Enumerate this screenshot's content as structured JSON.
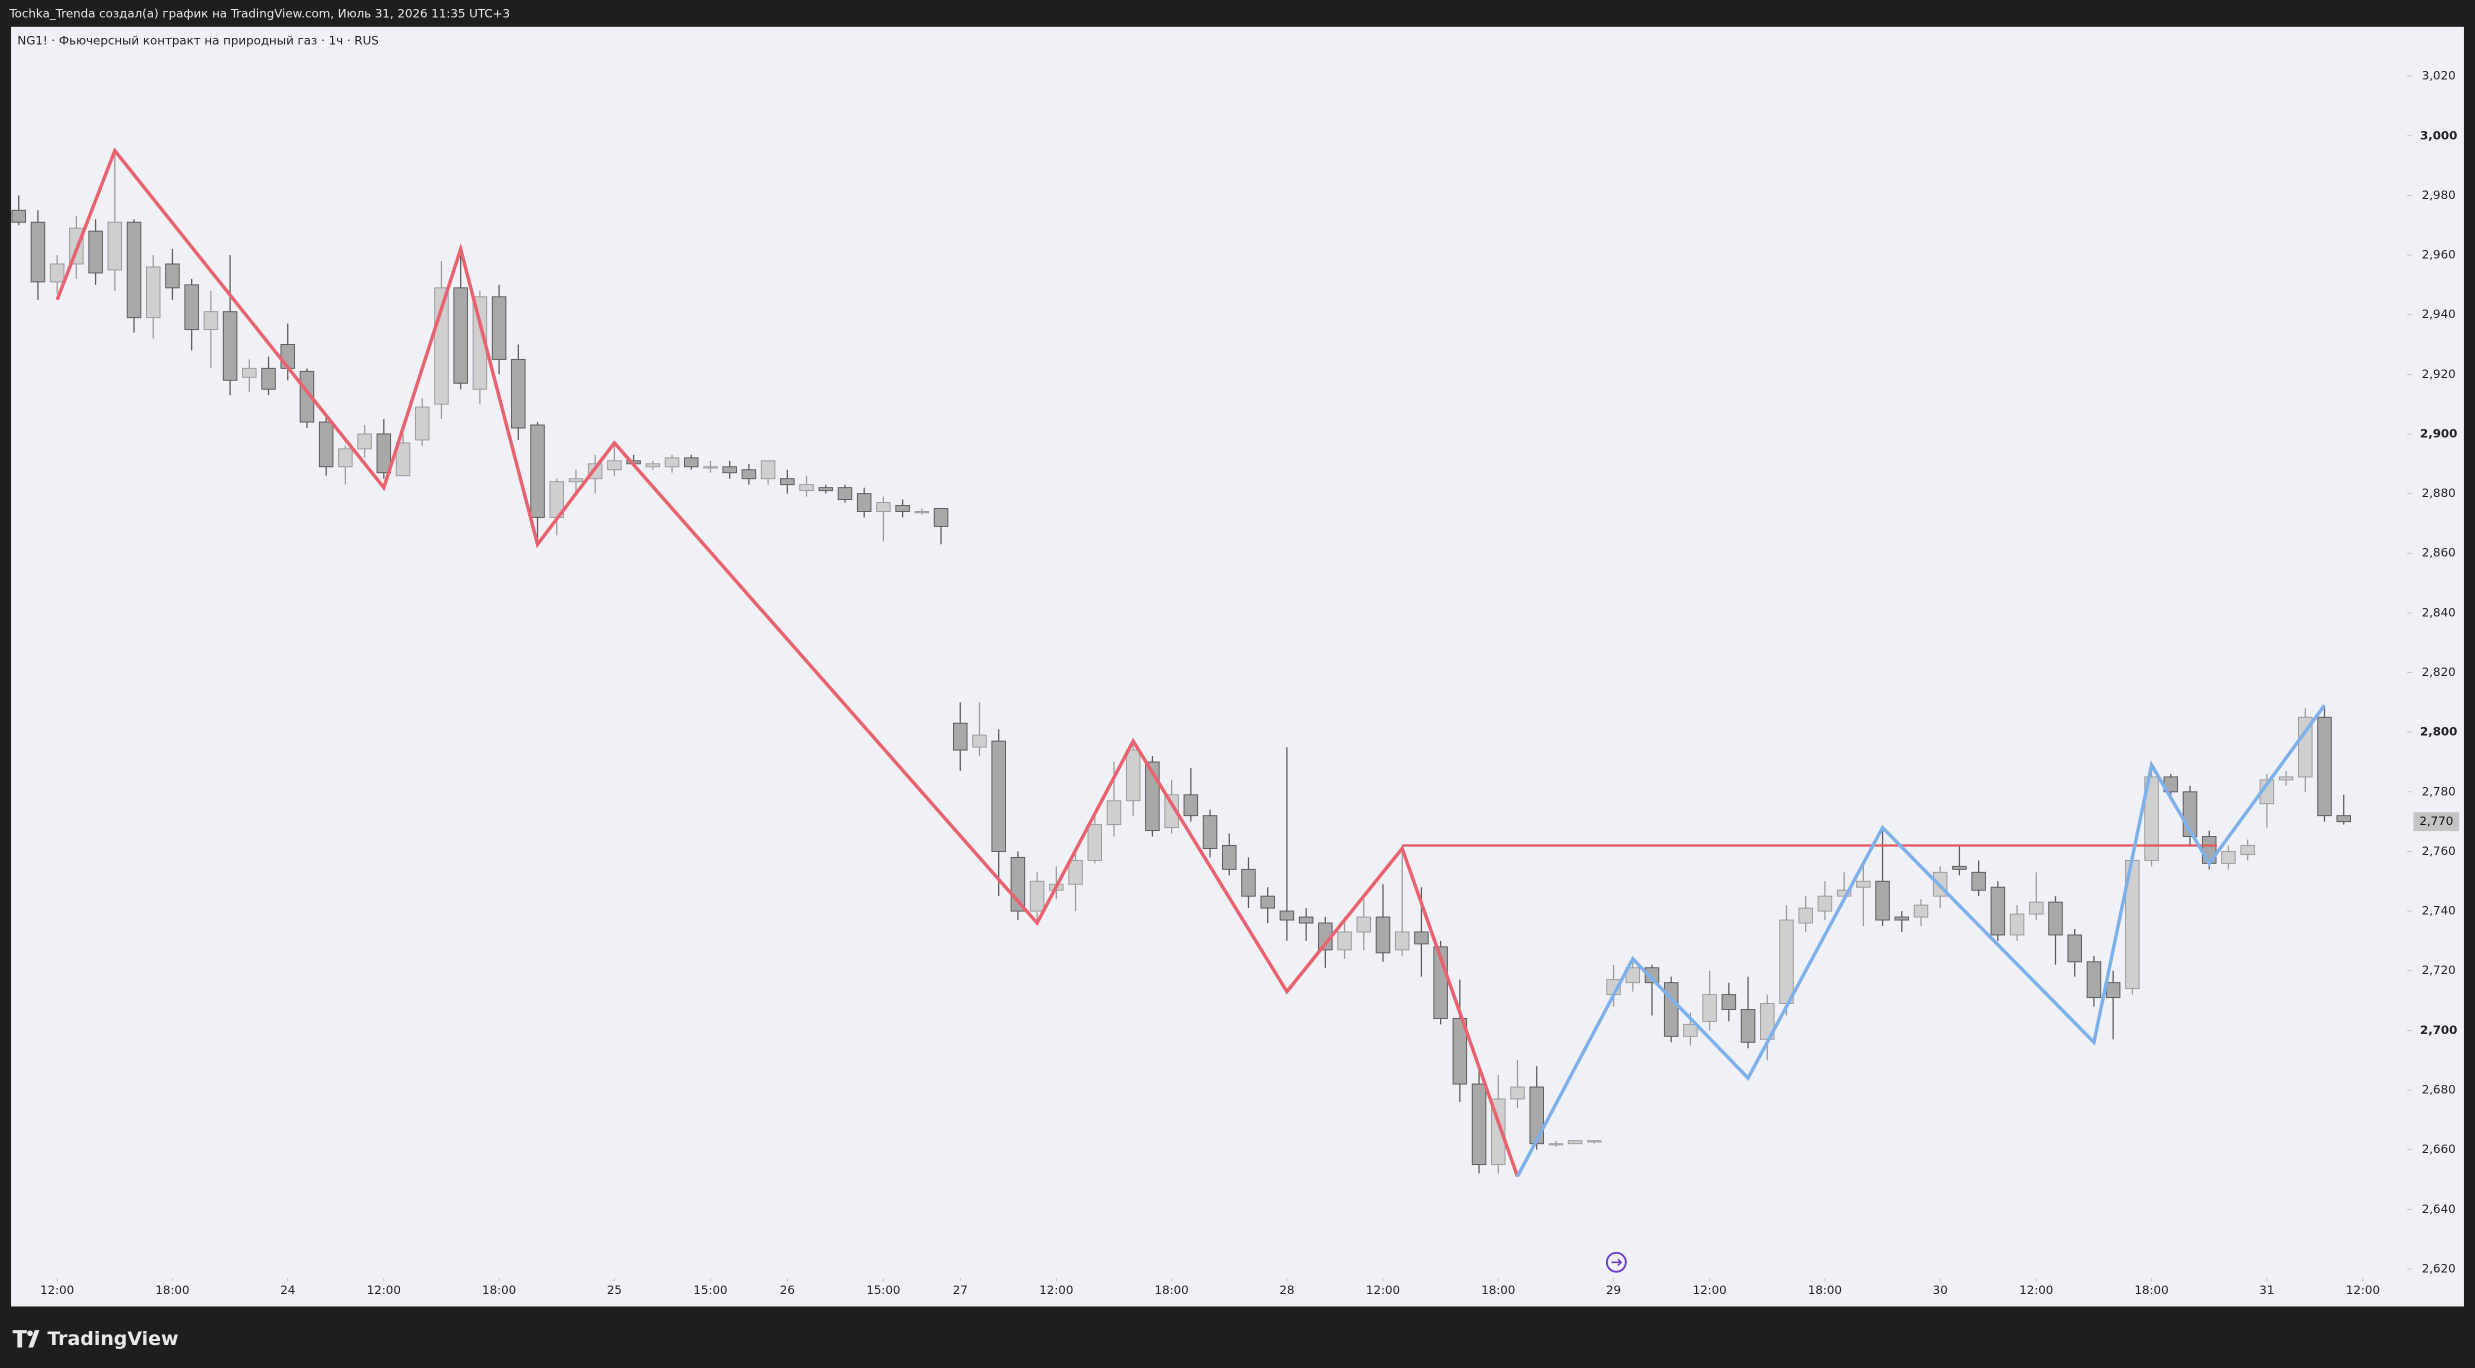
{
  "header": {
    "text": "Tochka_Trenda создал(а) график на TradingView.com, Июль 31, 2026 11:35 UTC+3"
  },
  "footer": {
    "brand": "TradingView"
  },
  "chart_data": {
    "type": "candlestick",
    "title": "NG1! · Фьючерсный контракт на природный газ · 1ч · RUS",
    "up_color": "#cfcfcf",
    "down_color": "#a8a8a8",
    "open": [
      2975,
      2971,
      2951,
      2957,
      2968,
      2955,
      2971,
      2939,
      2957,
      2950,
      2935,
      2941,
      2919,
      2922,
      2930,
      2921,
      2904,
      2889,
      2895,
      2900,
      2886,
      2898,
      2910,
      2949,
      2915,
      2946,
      2925,
      2903,
      2872,
      2884,
      2885,
      2888,
      2891,
      2889,
      2889,
      2892,
      2889,
      2889,
      2888,
      2885,
      2885,
      2881,
      2882,
      2882,
      2880,
      2874,
      2876,
      2874,
      2875,
      2803,
      2795,
      2797,
      2758,
      2740,
      2747,
      2749,
      2757,
      2769,
      2777,
      2790,
      2768,
      2779,
      2772,
      2762,
      2754,
      2745,
      2740,
      2738,
      2736,
      2727,
      2733,
      2738,
      2727,
      2733,
      2728,
      2704,
      2682,
      2655,
      2677,
      2681,
      2662,
      2662,
      2663,
      2712,
      2716,
      2721,
      2716,
      2698,
      2703,
      2712,
      2707,
      2697,
      2709,
      2736,
      2740,
      2745,
      2748,
      2750,
      2738,
      2738,
      2745,
      2755,
      2753,
      2748,
      2732,
      2739,
      2743,
      2732,
      2723,
      2716,
      2714,
      2757,
      2785,
      2780,
      2765,
      2756,
      2759,
      2776,
      2784,
      2785,
      2805,
      2772
    ],
    "high": [
      2980,
      2975,
      2960,
      2973,
      2972,
      2995,
      2972,
      2960,
      2962,
      2952,
      2948,
      2960,
      2925,
      2926,
      2937,
      2922,
      2906,
      2896,
      2903,
      2905,
      2900,
      2912,
      2958,
      2962,
      2948,
      2950,
      2930,
      2904,
      2885,
      2888,
      2893,
      2896,
      2893,
      2891,
      2893,
      2893,
      2891,
      2891,
      2890,
      2891,
      2888,
      2886,
      2883,
      2883,
      2882,
      2879,
      2878,
      2875,
      2875,
      2810,
      2810,
      2801,
      2760,
      2753,
      2755,
      2760,
      2773,
      2790,
      2797,
      2792,
      2784,
      2788,
      2774,
      2766,
      2758,
      2748,
      2795,
      2741,
      2738,
      2738,
      2744,
      2749,
      2760,
      2748,
      2730,
      2717,
      2688,
      2685,
      2690,
      2688,
      2663,
      2663,
      2663,
      2722,
      2724,
      2722,
      2718,
      2706,
      2720,
      2716,
      2718,
      2712,
      2742,
      2745,
      2750,
      2753,
      2756,
      2768,
      2740,
      2744,
      2755,
      2762,
      2757,
      2750,
      2742,
      2753,
      2745,
      2734,
      2725,
      2720,
      2760,
      2789,
      2786,
      2782,
      2767,
      2762,
      2764,
      2786,
      2787,
      2808,
      2808,
      2779
    ],
    "low": [
      2970,
      2945,
      2947,
      2952,
      2950,
      2948,
      2934,
      2932,
      2945,
      2928,
      2922,
      2913,
      2914,
      2913,
      2918,
      2902,
      2886,
      2883,
      2892,
      2885,
      2886,
      2896,
      2905,
      2915,
      2910,
      2920,
      2898,
      2865,
      2866,
      2880,
      2880,
      2886,
      2889,
      2888,
      2887,
      2888,
      2887,
      2885,
      2883,
      2883,
      2880,
      2879,
      2880,
      2877,
      2872,
      2864,
      2872,
      2873,
      2863,
      2787,
      2792,
      2745,
      2737,
      2736,
      2744,
      2740,
      2756,
      2765,
      2772,
      2765,
      2766,
      2770,
      2758,
      2752,
      2741,
      2736,
      2730,
      2730,
      2721,
      2724,
      2727,
      2723,
      2725,
      2718,
      2702,
      2676,
      2652,
      2652,
      2674,
      2660,
      2661,
      2662,
      2662,
      2708,
      2713,
      2705,
      2696,
      2695,
      2700,
      2703,
      2694,
      2690,
      2705,
      2733,
      2737,
      2743,
      2735,
      2735,
      2733,
      2735,
      2741,
      2752,
      2745,
      2730,
      2730,
      2737,
      2722,
      2718,
      2708,
      2697,
      2712,
      2755,
      2777,
      2762,
      2754,
      2754,
      2757,
      2768,
      2782,
      2780,
      2770,
      2769
    ],
    "close": [
      2971,
      2951,
      2957,
      2969,
      2954,
      2971,
      2939,
      2956,
      2949,
      2935,
      2941,
      2918,
      2922,
      2915,
      2922,
      2904,
      2889,
      2895,
      2900,
      2887,
      2897,
      2909,
      2949,
      2917,
      2946,
      2925,
      2902,
      2872,
      2884,
      2885,
      2890,
      2891,
      2890,
      2890,
      2892,
      2889,
      2889,
      2887,
      2885,
      2891,
      2883,
      2883,
      2881,
      2878,
      2874,
      2877,
      2874,
      2874,
      2869,
      2794,
      2799,
      2760,
      2740,
      2750,
      2749,
      2757,
      2769,
      2777,
      2794,
      2767,
      2779,
      2772,
      2761,
      2754,
      2745,
      2741,
      2737,
      2736,
      2727,
      2733,
      2738,
      2726,
      2733,
      2729,
      2704,
      2682,
      2655,
      2677,
      2681,
      2662,
      2662,
      2663,
      2663,
      2717,
      2721,
      2716,
      2698,
      2702,
      2712,
      2707,
      2696,
      2709,
      2737,
      2741,
      2745,
      2747,
      2750,
      2737,
      2737,
      2742,
      2753,
      2754,
      2747,
      2732,
      2739,
      2743,
      2732,
      2723,
      2711,
      2711,
      2757,
      2785,
      2780,
      2765,
      2756,
      2760,
      2762,
      2784,
      2785,
      2805,
      2772,
      2770
    ],
    "xlim": [
      -0.4,
      124.3
    ],
    "xticks": [
      {
        "value": 2,
        "label": "12:00"
      },
      {
        "value": 8,
        "label": "18:00"
      },
      {
        "value": 14,
        "label": "24"
      },
      {
        "value": 19,
        "label": "12:00"
      },
      {
        "value": 25,
        "label": "18:00"
      },
      {
        "value": 31,
        "label": "25"
      },
      {
        "value": 36,
        "label": "15:00"
      },
      {
        "value": 40,
        "label": "26"
      },
      {
        "value": 45,
        "label": "15:00"
      },
      {
        "value": 49,
        "label": "27"
      },
      {
        "value": 54,
        "label": "12:00"
      },
      {
        "value": 60,
        "label": "18:00"
      },
      {
        "value": 66,
        "label": "28"
      },
      {
        "value": 71,
        "label": "12:00"
      },
      {
        "value": 77,
        "label": "18:00"
      },
      {
        "value": 83,
        "label": "29"
      },
      {
        "value": 88,
        "label": "12:00"
      },
      {
        "value": 94,
        "label": "18:00"
      },
      {
        "value": 100,
        "label": "30"
      },
      {
        "value": 105,
        "label": "12:00"
      },
      {
        "value": 111,
        "label": "18:00"
      },
      {
        "value": 117,
        "label": "31"
      },
      {
        "value": 122,
        "label": "12:00"
      }
    ],
    "ylim": [
      2618,
      3036
    ],
    "yticks": [
      {
        "value": 3020,
        "label": "3,020"
      },
      {
        "value": 3000,
        "label": "3,000"
      },
      {
        "value": 2980,
        "label": "2,980"
      },
      {
        "value": 2960,
        "label": "2,960"
      },
      {
        "value": 2940,
        "label": "2,940"
      },
      {
        "value": 2920,
        "label": "2,920"
      },
      {
        "value": 2900,
        "label": "2,900"
      },
      {
        "value": 2880,
        "label": "2,880"
      },
      {
        "value": 2860,
        "label": "2,860"
      },
      {
        "value": 2840,
        "label": "2,840"
      },
      {
        "value": 2820,
        "label": "2,820"
      },
      {
        "value": 2800,
        "label": "2,800"
      },
      {
        "value": 2780,
        "label": "2,780"
      },
      {
        "value": 2760,
        "label": "2,760"
      },
      {
        "value": 2740,
        "label": "2,740"
      },
      {
        "value": 2720,
        "label": "2,720"
      },
      {
        "value": 2700,
        "label": "2,700"
      },
      {
        "value": 2680,
        "label": "2,680"
      },
      {
        "value": 2660,
        "label": "2,660"
      },
      {
        "value": 2640,
        "label": "2,640"
      },
      {
        "value": 2620,
        "label": "2,620"
      }
    ],
    "last_price": {
      "value": 2770,
      "label": "2,770"
    },
    "overlays": [
      {
        "color": "#e8636f",
        "x": [
          2,
          5,
          19,
          23,
          27,
          31,
          53,
          58,
          66,
          72,
          78
        ],
        "values": [
          2945,
          2995,
          2882,
          2962,
          2863,
          2897,
          2736,
          2797,
          2713,
          2761,
          2651
        ]
      },
      {
        "color": "#e0575f",
        "x": [
          72,
          114.4
        ],
        "values": [
          2762,
          2762
        ]
      },
      {
        "color": "#7eb0ea",
        "x": [
          78,
          84,
          90,
          97,
          108,
          111,
          114,
          120
        ],
        "values": [
          2651,
          2724,
          2684,
          2768,
          2696,
          2789,
          2756,
          2809
        ]
      }
    ]
  }
}
